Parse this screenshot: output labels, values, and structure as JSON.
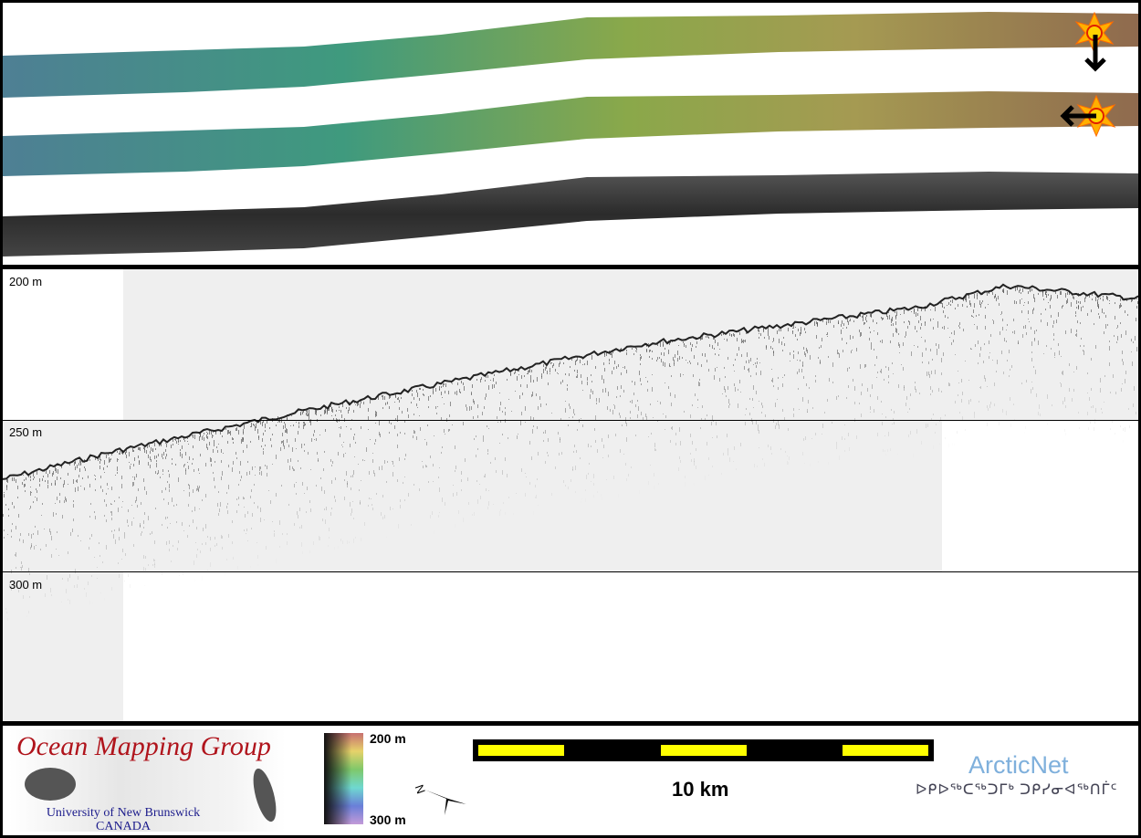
{
  "profile": {
    "depth_labels": [
      "200 m",
      "250 m",
      "300 m"
    ]
  },
  "legend": {
    "logo": {
      "title": "Ocean Mapping Group",
      "university": "University of New Brunswick",
      "country": "CANADA"
    },
    "colorbar": {
      "top_label": "200 m",
      "bottom_label": "300 m"
    },
    "north_label": "N",
    "scale_label": "10 km",
    "partner": {
      "name": "ArcticNet",
      "syllabics": "ᐅᑭᐅᖅᑕᖅᑐᒥᒃ ᑐᑭᓯᓂᐊᖅᑎᒦᑦ"
    }
  },
  "colors": {
    "scale_fill": "#ffff00",
    "logo_red": "#b0141c",
    "logo_blue": "#1c1c8c",
    "arcticnet": "#7fb0dc"
  }
}
